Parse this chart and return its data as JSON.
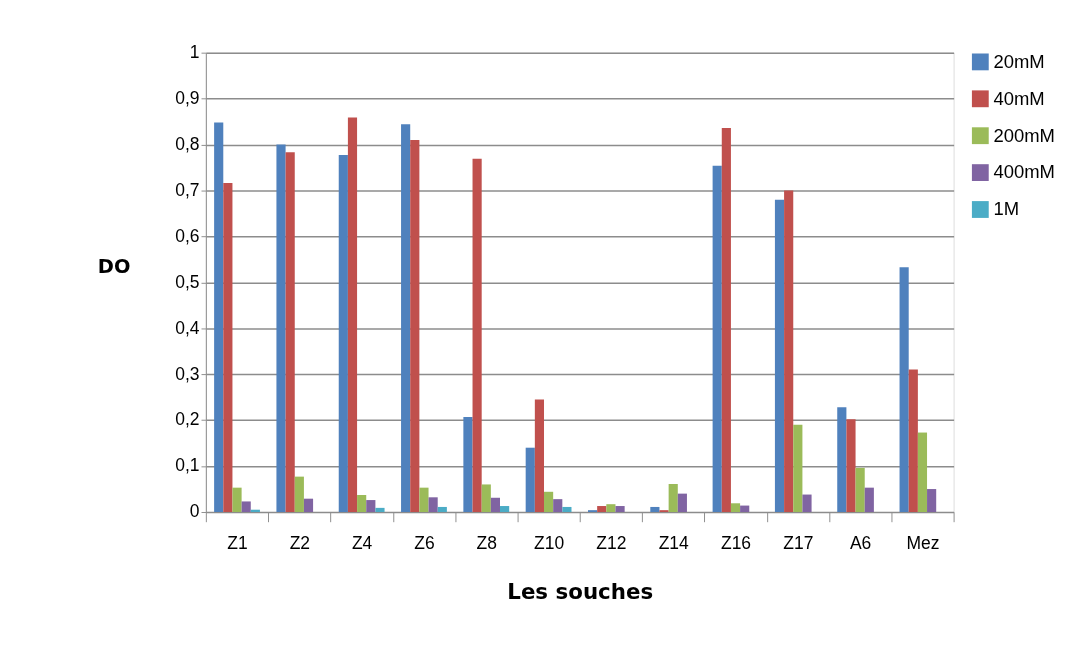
{
  "chart_data": {
    "type": "bar",
    "xlabel": "Les souches",
    "ylabel": "DO",
    "categories": [
      "Z1",
      "Z2",
      "Z4",
      "Z6",
      "Z8",
      "Z10",
      "Z12",
      "Z14",
      "Z16",
      "Z17",
      "A6",
      "Mez"
    ],
    "series": [
      {
        "name": "20mM",
        "color": "#4f81bd",
        "values": [
          0.848,
          0.8,
          0.777,
          0.844,
          0.207,
          0.14,
          0.004,
          0.011,
          0.754,
          0.68,
          0.228,
          0.533
        ]
      },
      {
        "name": "40mM",
        "color": "#c0504d",
        "values": [
          0.716,
          0.783,
          0.859,
          0.81,
          0.769,
          0.245,
          0.013,
          0.004,
          0.836,
          0.7,
          0.202,
          0.31
        ]
      },
      {
        "name": "200mM",
        "color": "#9bbb59",
        "values": [
          0.053,
          0.077,
          0.037,
          0.053,
          0.06,
          0.044,
          0.017,
          0.061,
          0.019,
          0.19,
          0.096,
          0.173
        ]
      },
      {
        "name": "400mM",
        "color": "#8064a2",
        "values": [
          0.023,
          0.029,
          0.026,
          0.032,
          0.031,
          0.028,
          0.013,
          0.04,
          0.014,
          0.038,
          0.053,
          0.05
        ]
      },
      {
        "name": "1M",
        "color": "#4bacc6",
        "values": [
          0.005,
          0,
          0.009,
          0.011,
          0.013,
          0.011,
          null,
          0,
          0,
          0,
          0,
          0
        ]
      }
    ],
    "ylim": [
      0,
      1
    ],
    "yticks": [
      0,
      {
        "value": 0.1,
        "label": "0,1"
      },
      {
        "value": 0.2,
        "label": "0,2"
      },
      {
        "value": 0.3,
        "label": "0,3"
      },
      {
        "value": 0.4,
        "label": "0,4"
      },
      {
        "value": 0.5,
        "label": "0,5"
      },
      {
        "value": 0.6,
        "label": "0,6"
      },
      {
        "value": 0.7,
        "label": "0,7"
      },
      {
        "value": 0.8,
        "label": "0,8"
      },
      {
        "value": 0.9,
        "label": "0,9"
      },
      1
    ],
    "grid": "y",
    "legend": "right"
  }
}
